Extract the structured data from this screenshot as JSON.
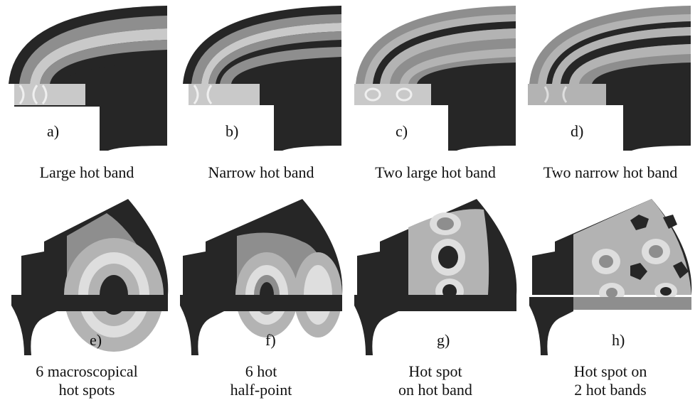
{
  "colors": {
    "dark": "#262626",
    "mid": "#8e8e8e",
    "light": "#c9c9c9",
    "lighter": "#dedede",
    "ring": "#b3b3b3"
  },
  "panels_top": [
    {
      "letter": "a)",
      "caption": [
        "Large hot band"
      ]
    },
    {
      "letter": "b)",
      "caption": [
        "Narrow hot band"
      ]
    },
    {
      "letter": "c)",
      "caption": [
        "Two large hot band"
      ]
    },
    {
      "letter": "d)",
      "caption": [
        "Two narrow hot band"
      ]
    }
  ],
  "panels_bottom": [
    {
      "letter": "e)",
      "caption": [
        "6 macroscopical",
        "hot spots"
      ]
    },
    {
      "letter": "f)",
      "caption": [
        "6 hot",
        "half-point"
      ]
    },
    {
      "letter": "g)",
      "caption": [
        "Hot spot",
        "on hot band"
      ]
    },
    {
      "letter": "h)",
      "caption": [
        "Hot spot on",
        "2 hot bands"
      ]
    }
  ]
}
